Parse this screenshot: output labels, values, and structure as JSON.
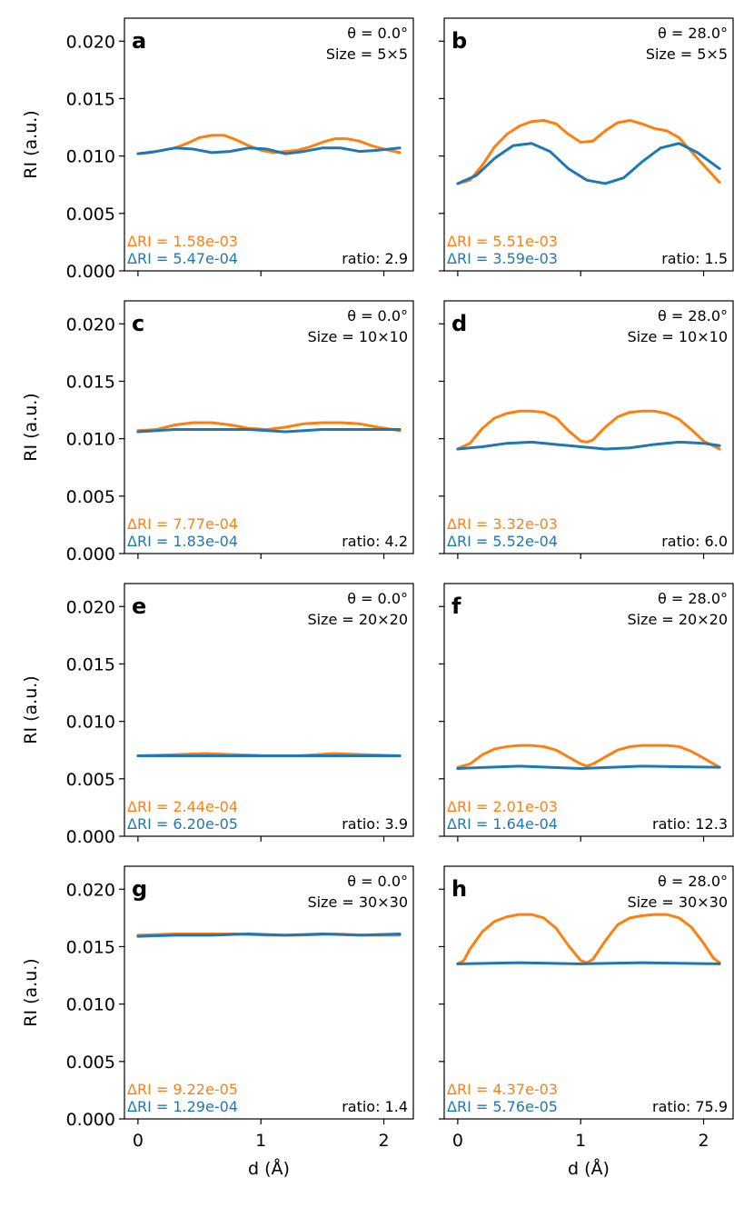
{
  "colors": {
    "orange": "#ff7f0e",
    "blue": "#1f77b4",
    "axis": "#000000"
  },
  "chart_data": {
    "type": "line",
    "shared": {
      "xlabel": "d (Å)",
      "ylabel": "RI (a.u.)",
      "xlim": [
        -0.11,
        2.24
      ],
      "ylim": [
        0.0,
        0.022
      ],
      "xticks": [
        0,
        1,
        2
      ],
      "xticklabels": [
        "0",
        "1",
        "2"
      ],
      "yticks": [
        0.0,
        0.005,
        0.01,
        0.015,
        0.02
      ],
      "yticklabels": [
        "0.000",
        "0.005",
        "0.010",
        "0.015",
        "0.020"
      ],
      "series_names": [
        "orange",
        "blue"
      ],
      "grid": false
    },
    "panels": [
      {
        "id": "a",
        "label": "a",
        "theta": "θ = 0.0°",
        "size": "Size = 5×5",
        "dri_orange": "ΔRI = 1.58e-03",
        "dri_blue": "ΔRI = 5.47e-04",
        "ratio": "ratio: 2.9",
        "series": [
          {
            "name": "orange",
            "x": [
              0,
              0.1,
              0.2,
              0.3,
              0.4,
              0.5,
              0.6,
              0.7,
              0.8,
              0.9,
              1.0,
              1.1,
              1.2,
              1.3,
              1.4,
              1.5,
              1.6,
              1.7,
              1.8,
              1.9,
              2.0,
              2.13
            ],
            "y": [
              0.0102,
              0.0103,
              0.0105,
              0.0107,
              0.0111,
              0.0116,
              0.0118,
              0.0118,
              0.0114,
              0.0109,
              0.0105,
              0.0103,
              0.0104,
              0.0105,
              0.0108,
              0.0112,
              0.0115,
              0.0115,
              0.0113,
              0.0109,
              0.0106,
              0.0103
            ]
          },
          {
            "name": "blue",
            "x": [
              0,
              0.15,
              0.3,
              0.45,
              0.6,
              0.75,
              0.9,
              1.05,
              1.2,
              1.35,
              1.5,
              1.65,
              1.8,
              1.95,
              2.13
            ],
            "y": [
              0.0102,
              0.0104,
              0.0107,
              0.0106,
              0.0103,
              0.0104,
              0.0107,
              0.0106,
              0.0102,
              0.0104,
              0.0107,
              0.0107,
              0.0104,
              0.0105,
              0.0107
            ]
          }
        ]
      },
      {
        "id": "b",
        "label": "b",
        "theta": "θ = 28.0°",
        "size": "Size = 5×5",
        "dri_orange": "ΔRI = 5.51e-03",
        "dri_blue": "ΔRI = 3.59e-03",
        "ratio": "ratio: 1.5",
        "series": [
          {
            "name": "orange",
            "x": [
              0,
              0.1,
              0.2,
              0.3,
              0.4,
              0.5,
              0.6,
              0.7,
              0.8,
              0.9,
              1.0,
              1.1,
              1.2,
              1.3,
              1.4,
              1.5,
              1.6,
              1.7,
              1.8,
              1.9,
              2.0,
              2.13
            ],
            "y": [
              0.0076,
              0.0079,
              0.0092,
              0.0108,
              0.0119,
              0.0126,
              0.013,
              0.0131,
              0.0128,
              0.0119,
              0.0112,
              0.0113,
              0.0122,
              0.0129,
              0.0131,
              0.0128,
              0.0124,
              0.0122,
              0.0116,
              0.0104,
              0.0092,
              0.0077
            ]
          },
          {
            "name": "blue",
            "x": [
              0,
              0.15,
              0.3,
              0.45,
              0.6,
              0.75,
              0.9,
              1.05,
              1.2,
              1.35,
              1.5,
              1.65,
              1.8,
              1.95,
              2.13
            ],
            "y": [
              0.0076,
              0.0083,
              0.0098,
              0.0109,
              0.0111,
              0.0104,
              0.0089,
              0.0079,
              0.0076,
              0.0081,
              0.0095,
              0.0107,
              0.0111,
              0.0103,
              0.0089
            ]
          }
        ]
      },
      {
        "id": "c",
        "label": "c",
        "theta": "θ = 0.0°",
        "size": "Size = 10×10",
        "dri_orange": "ΔRI = 7.77e-04",
        "dri_blue": "ΔRI = 1.83e-04",
        "ratio": "ratio: 4.2",
        "series": [
          {
            "name": "orange",
            "x": [
              0,
              0.15,
              0.3,
              0.45,
              0.6,
              0.75,
              0.9,
              1.05,
              1.2,
              1.35,
              1.5,
              1.65,
              1.8,
              1.95,
              2.13
            ],
            "y": [
              0.0107,
              0.0108,
              0.0112,
              0.0114,
              0.0114,
              0.0112,
              0.0109,
              0.0108,
              0.011,
              0.0113,
              0.0114,
              0.0114,
              0.0113,
              0.011,
              0.0107
            ]
          },
          {
            "name": "blue",
            "x": [
              0,
              0.3,
              0.6,
              0.9,
              1.2,
              1.5,
              1.8,
              2.13
            ],
            "y": [
              0.0106,
              0.0108,
              0.0108,
              0.0108,
              0.0106,
              0.0108,
              0.0108,
              0.0108
            ]
          }
        ]
      },
      {
        "id": "d",
        "label": "d",
        "theta": "θ = 28.0°",
        "size": "Size = 10×10",
        "dri_orange": "ΔRI = 3.32e-03",
        "dri_blue": "ΔRI = 5.52e-04",
        "ratio": "ratio: 6.0",
        "series": [
          {
            "name": "orange",
            "x": [
              0,
              0.1,
              0.2,
              0.3,
              0.4,
              0.5,
              0.6,
              0.7,
              0.8,
              0.9,
              1.0,
              1.05,
              1.1,
              1.2,
              1.3,
              1.4,
              1.5,
              1.6,
              1.7,
              1.8,
              1.9,
              2.0,
              2.13
            ],
            "y": [
              0.0091,
              0.0096,
              0.0109,
              0.0118,
              0.0122,
              0.0124,
              0.0124,
              0.0123,
              0.0118,
              0.0107,
              0.0098,
              0.0097,
              0.0099,
              0.011,
              0.0119,
              0.0123,
              0.0124,
              0.0124,
              0.0122,
              0.0117,
              0.0108,
              0.0098,
              0.0091
            ]
          },
          {
            "name": "blue",
            "x": [
              0,
              0.2,
              0.4,
              0.6,
              0.8,
              1.0,
              1.2,
              1.4,
              1.6,
              1.8,
              2.0,
              2.13
            ],
            "y": [
              0.0091,
              0.0093,
              0.0096,
              0.0097,
              0.0095,
              0.0093,
              0.0091,
              0.0092,
              0.0095,
              0.0097,
              0.0096,
              0.0094
            ]
          }
        ]
      },
      {
        "id": "e",
        "label": "e",
        "theta": "θ = 0.0°",
        "size": "Size = 20×20",
        "dri_orange": "ΔRI = 2.44e-04",
        "dri_blue": "ΔRI = 6.20e-05",
        "ratio": "ratio: 3.9",
        "series": [
          {
            "name": "orange",
            "x": [
              0,
              0.3,
              0.55,
              0.8,
              1.05,
              1.3,
              1.6,
              1.85,
              2.13
            ],
            "y": [
              0.007,
              0.0071,
              0.0072,
              0.0071,
              0.007,
              0.007,
              0.0072,
              0.0071,
              0.007
            ]
          },
          {
            "name": "blue",
            "x": [
              0,
              0.5,
              1.0,
              1.5,
              2.13
            ],
            "y": [
              0.007,
              0.007,
              0.007,
              0.007,
              0.007
            ]
          }
        ]
      },
      {
        "id": "f",
        "label": "f",
        "theta": "θ = 28.0°",
        "size": "Size = 20×20",
        "dri_orange": "ΔRI = 2.01e-03",
        "dri_blue": "ΔRI = 1.64e-04",
        "ratio": "ratio: 12.3",
        "series": [
          {
            "name": "orange",
            "x": [
              0,
              0.1,
              0.2,
              0.3,
              0.4,
              0.5,
              0.6,
              0.7,
              0.8,
              0.9,
              1.0,
              1.05,
              1.1,
              1.2,
              1.3,
              1.4,
              1.5,
              1.6,
              1.7,
              1.8,
              1.9,
              2.0,
              2.13
            ],
            "y": [
              0.006,
              0.0063,
              0.0071,
              0.0076,
              0.0078,
              0.0079,
              0.0079,
              0.0078,
              0.0075,
              0.0069,
              0.0063,
              0.0061,
              0.0063,
              0.0069,
              0.0075,
              0.0078,
              0.0079,
              0.0079,
              0.0079,
              0.0078,
              0.0074,
              0.0068,
              0.006
            ]
          },
          {
            "name": "blue",
            "x": [
              0,
              0.5,
              1.0,
              1.5,
              2.13
            ],
            "y": [
              0.0059,
              0.0061,
              0.0059,
              0.0061,
              0.006
            ]
          }
        ]
      },
      {
        "id": "g",
        "label": "g",
        "theta": "θ = 0.0°",
        "size": "Size = 30×30",
        "dri_orange": "ΔRI = 9.22e-05",
        "dri_blue": "ΔRI = 1.29e-04",
        "ratio": "ratio: 1.4",
        "series": [
          {
            "name": "orange",
            "x": [
              0,
              0.3,
              0.55,
              0.8,
              1.05,
              1.3,
              1.6,
              1.85,
              2.13
            ],
            "y": [
              0.016,
              0.0161,
              0.0161,
              0.0161,
              0.016,
              0.016,
              0.0161,
              0.016,
              0.016
            ]
          },
          {
            "name": "blue",
            "x": [
              0,
              0.3,
              0.6,
              0.9,
              1.2,
              1.5,
              1.8,
              2.13
            ],
            "y": [
              0.0159,
              0.016,
              0.016,
              0.0161,
              0.016,
              0.0161,
              0.016,
              0.0161
            ]
          }
        ]
      },
      {
        "id": "h",
        "label": "h",
        "theta": "θ = 28.0°",
        "size": "Size = 30×30",
        "dri_orange": "ΔRI = 4.37e-03",
        "dri_blue": "ΔRI = 5.76e-05",
        "ratio": "ratio: 75.9",
        "series": [
          {
            "name": "orange",
            "x": [
              0,
              0.05,
              0.1,
              0.2,
              0.3,
              0.4,
              0.5,
              0.6,
              0.7,
              0.8,
              0.9,
              1.0,
              1.05,
              1.1,
              1.2,
              1.3,
              1.4,
              1.5,
              1.6,
              1.7,
              1.8,
              1.9,
              2.0,
              2.08,
              2.13
            ],
            "y": [
              0.0135,
              0.0138,
              0.0148,
              0.0163,
              0.0172,
              0.0176,
              0.0178,
              0.0178,
              0.0175,
              0.0166,
              0.0151,
              0.0138,
              0.0136,
              0.0139,
              0.0155,
              0.0169,
              0.0175,
              0.0177,
              0.0178,
              0.0178,
              0.0175,
              0.0167,
              0.0153,
              0.014,
              0.0136
            ]
          },
          {
            "name": "blue",
            "x": [
              0,
              0.5,
              1.0,
              1.5,
              2.13
            ],
            "y": [
              0.0135,
              0.0136,
              0.0135,
              0.0136,
              0.0135
            ]
          }
        ]
      }
    ]
  }
}
